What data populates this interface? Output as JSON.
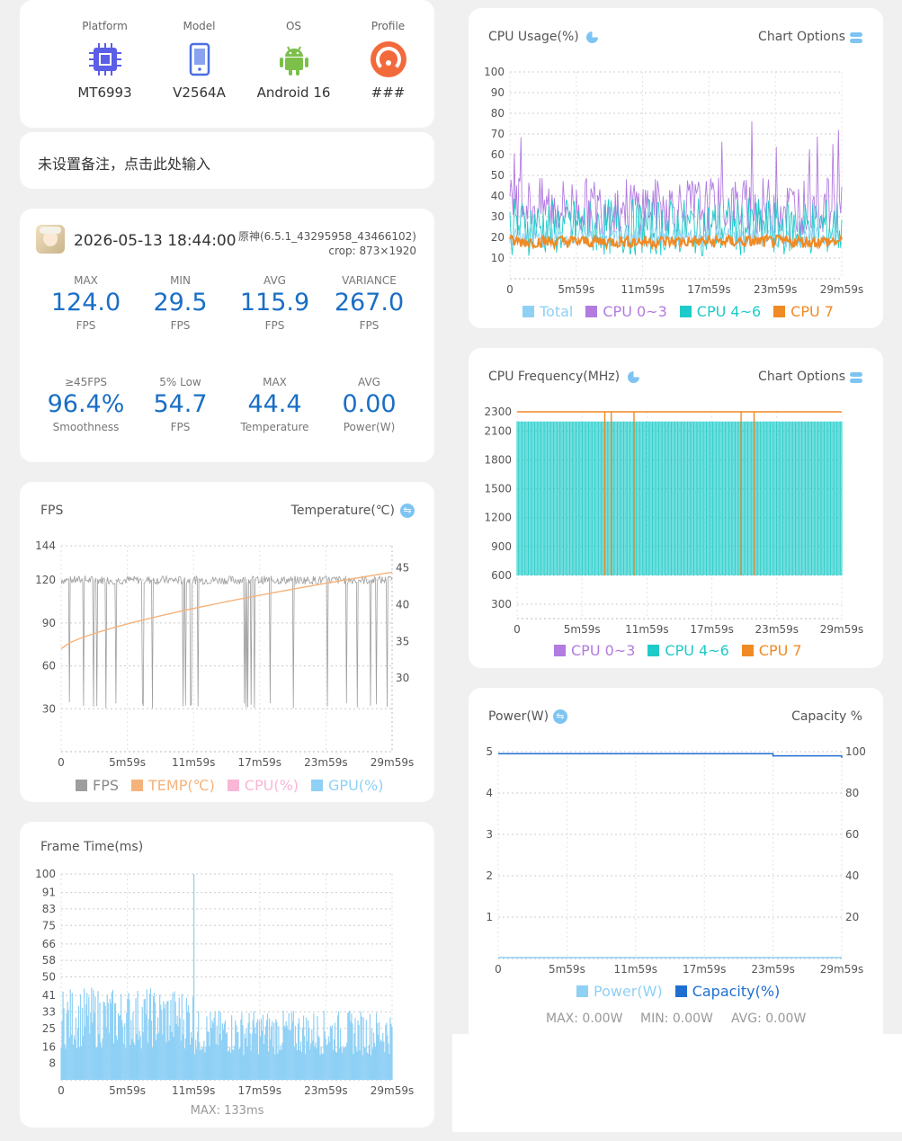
{
  "device": {
    "platform_label": "Platform",
    "platform_value": "MT6993",
    "model_label": "Model",
    "model_value": "V2564A",
    "os_label": "OS",
    "os_value": "Android 16",
    "profile_label": "Profile",
    "profile_value": "###"
  },
  "note": {
    "placeholder": "未设置备注，点击此处输入"
  },
  "session": {
    "datetime": "2026-05-13 18:44:00",
    "app": "原神(6.5.1_43295958_43466102)",
    "crop": "crop: 873×1920",
    "stats": [
      {
        "head": "MAX",
        "value": "124.0",
        "unit": "FPS"
      },
      {
        "head": "MIN",
        "value": "29.5",
        "unit": "FPS"
      },
      {
        "head": "AVG",
        "value": "115.9",
        "unit": "FPS"
      },
      {
        "head": "VARIANCE",
        "value": "267.0",
        "unit": "FPS"
      },
      {
        "head": "≥45FPS",
        "value": "96.4%",
        "unit": "Smoothness"
      },
      {
        "head": "5% Low",
        "value": "54.7",
        "unit": "FPS"
      },
      {
        "head": "MAX",
        "value": "44.4",
        "unit": "Temperature"
      },
      {
        "head": "AVG",
        "value": "0.00",
        "unit": "Power(W)"
      }
    ]
  },
  "fps_card": {
    "title": "FPS",
    "right_title": "Temperature(℃)",
    "legend": [
      "FPS",
      "TEMP(℃)",
      "CPU(%)",
      "GPU(%)"
    ],
    "footer": ""
  },
  "frametime_card": {
    "title": "Frame Time(ms)",
    "footer": "MAX: 133ms"
  },
  "cpu_usage_card": {
    "title": "CPU Usage(%)",
    "options": "Chart Options",
    "legend": [
      "Total",
      "CPU 0~3",
      "CPU 4~6",
      "CPU 7"
    ]
  },
  "cpu_freq_card": {
    "title": "CPU Frequency(MHz)",
    "options": "Chart Options",
    "legend": [
      "CPU 0~3",
      "CPU 4~6",
      "CPU 7"
    ]
  },
  "power_card": {
    "title": "Power(W)",
    "right_title": "Capacity %",
    "legend": [
      "Power(W)",
      "Capacity(%)"
    ],
    "max": "MAX: 0.00W",
    "min": "MIN: 0.00W",
    "avg": "AVG: 0.00W"
  },
  "colors": {
    "fps": "#9e9e9e",
    "temp": "#f5b27a",
    "cpu": "#f9b6d6",
    "gpu": "#8fd0f5",
    "total": "#8fd0f5",
    "cpu03": "#b27be0",
    "cpu46": "#1ecbc9",
    "cpu7": "#f08a24",
    "power": "#8fd0f5",
    "capacity": "#1f6fd1",
    "accent": "#1a6fc4"
  },
  "chart_data": [
    {
      "type": "line",
      "name": "FPS",
      "x_ticks": [
        "0",
        "5m59s",
        "11m59s",
        "17m59s",
        "23m59s",
        "29m59s"
      ],
      "y_ticks": [
        144,
        120,
        90,
        60,
        30
      ],
      "y2_ticks": [
        45,
        40,
        35,
        30
      ],
      "series": [
        {
          "name": "FPS",
          "approx_level": 120,
          "dips_to": 30
        },
        {
          "name": "TEMP(℃)",
          "start": 34,
          "end": 44.4
        }
      ]
    },
    {
      "type": "bar",
      "name": "Frame Time(ms)",
      "x_ticks": [
        "0",
        "5m59s",
        "11m59s",
        "17m59s",
        "23m59s",
        "29m59s"
      ],
      "y_ticks": [
        100,
        91,
        83,
        75,
        66,
        58,
        50,
        41,
        33,
        25,
        16,
        8
      ],
      "series": [
        {
          "name": "Frame Time",
          "typical": "8-40",
          "spike": 100
        }
      ]
    },
    {
      "type": "line",
      "name": "CPU Usage(%)",
      "x_ticks": [
        "0",
        "5m59s",
        "11m59s",
        "17m59s",
        "23m59s",
        "29m59s"
      ],
      "y_ticks": [
        100,
        90,
        80,
        70,
        60,
        50,
        40,
        30,
        20,
        10
      ],
      "series": [
        {
          "name": "Total",
          "approx": 20
        },
        {
          "name": "CPU 0~3",
          "approx": 35
        },
        {
          "name": "CPU 4~6",
          "approx": 25
        },
        {
          "name": "CPU 7",
          "approx": 18
        }
      ]
    },
    {
      "type": "line",
      "name": "CPU Frequency(MHz)",
      "x_ticks": [
        "0",
        "5m59s",
        "11m59s",
        "17m59s",
        "23m59s",
        "29m59s"
      ],
      "y_ticks": [
        2300,
        2100,
        1800,
        1500,
        1200,
        900,
        600,
        300
      ],
      "series": [
        {
          "name": "CPU 0~3"
        },
        {
          "name": "CPU 4~6",
          "range": [
            600,
            2200
          ]
        },
        {
          "name": "CPU 7",
          "approx": 2300
        }
      ]
    },
    {
      "type": "line",
      "name": "Power(W)",
      "x_ticks": [
        "0",
        "5m59s",
        "11m59s",
        "17m59s",
        "23m59s",
        "29m59s"
      ],
      "y_ticks": [
        5,
        4,
        3,
        2,
        1
      ],
      "y2_ticks": [
        100,
        80,
        60,
        40,
        20
      ],
      "series": [
        {
          "name": "Power(W)",
          "values": [
            0,
            0,
            0,
            0,
            0,
            0
          ]
        },
        {
          "name": "Capacity(%)",
          "values": [
            99,
            99,
            99,
            99,
            98,
            97
          ]
        }
      ]
    }
  ]
}
